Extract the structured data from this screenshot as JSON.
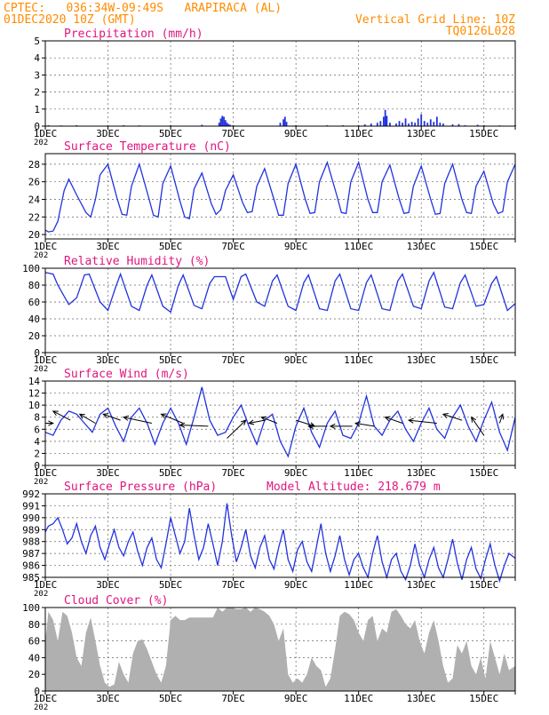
{
  "header": {
    "line1_left": "CPTEC:   036:34W-09:49S   ARAPIRACA (AL)",
    "line2_left": "01DEC2020 10Z (GMT)",
    "line1_right": "Vertical Grid Line: 10Z",
    "line2_right": "TQ0126L028"
  },
  "colors": {
    "header": "#ff8c00",
    "title": "#e0157f",
    "series": "#2233dd",
    "arrow": "#000000",
    "cloud": "#b0b0b0",
    "grid": "#666666"
  },
  "x_axis": {
    "tick_labels": [
      "1DEC",
      "3DEC",
      "5DEC",
      "7DEC",
      "9DEC",
      "11DEC",
      "13DEC",
      "15DEC"
    ],
    "tick_days": [
      1,
      3,
      5,
      7,
      9,
      11,
      13,
      15
    ],
    "lower_label": "202",
    "range_days": [
      1,
      16
    ]
  },
  "chart_data": [
    {
      "name": "precip",
      "type": "bar",
      "title": "Precipitation (mm/h)",
      "yticks": [
        "0",
        "1",
        "2",
        "3",
        "4",
        "5"
      ],
      "ylim": [
        0,
        5
      ],
      "x": [
        1.1,
        1.5,
        2.0,
        3.0,
        3.5,
        4.0,
        5.0,
        6.0,
        6.55,
        6.6,
        6.65,
        6.7,
        6.75,
        6.8,
        6.85,
        6.9,
        7.0,
        8.5,
        8.6,
        8.65,
        8.7,
        9.0,
        10.0,
        10.5,
        11.0,
        11.2,
        11.4,
        11.6,
        11.7,
        11.8,
        11.85,
        11.9,
        12.0,
        12.2,
        12.3,
        12.4,
        12.5,
        12.6,
        12.7,
        12.8,
        12.9,
        13.0,
        13.1,
        13.2,
        13.3,
        13.4,
        13.5,
        13.6,
        13.7,
        14.0,
        14.2,
        14.4,
        14.8,
        15.0,
        15.5,
        16.0
      ],
      "values": [
        0.05,
        0.04,
        0.05,
        0.04,
        0.05,
        0.04,
        0.05,
        0.08,
        0.2,
        0.45,
        0.6,
        0.55,
        0.35,
        0.2,
        0.12,
        0.08,
        0.05,
        0.2,
        0.4,
        0.55,
        0.25,
        0.05,
        0.05,
        0.05,
        0.05,
        0.1,
        0.15,
        0.2,
        0.3,
        0.55,
        0.95,
        0.6,
        0.2,
        0.15,
        0.3,
        0.2,
        0.45,
        0.15,
        0.25,
        0.2,
        0.45,
        0.7,
        0.3,
        0.2,
        0.4,
        0.25,
        0.55,
        0.2,
        0.15,
        0.1,
        0.12,
        0.05,
        0.08,
        0.05,
        0.04,
        0.05
      ]
    },
    {
      "name": "temp",
      "type": "line",
      "title": "Surface Temperature (nC)",
      "yticks": [
        "20",
        "22",
        "24",
        "26",
        "28"
      ],
      "ylim": [
        19.5,
        29.2
      ],
      "x": [
        1.0,
        1.1,
        1.25,
        1.4,
        1.6,
        1.75,
        2.0,
        2.3,
        2.45,
        2.6,
        2.75,
        3.0,
        3.3,
        3.45,
        3.6,
        3.75,
        4.0,
        4.3,
        4.45,
        4.6,
        4.75,
        5.0,
        5.3,
        5.45,
        5.6,
        5.75,
        6.0,
        6.3,
        6.45,
        6.6,
        6.75,
        7.0,
        7.3,
        7.45,
        7.6,
        7.75,
        8.0,
        8.3,
        8.45,
        8.6,
        8.75,
        9.0,
        9.3,
        9.45,
        9.6,
        9.75,
        10.0,
        10.3,
        10.45,
        10.6,
        10.75,
        11.0,
        11.3,
        11.45,
        11.6,
        11.75,
        12.0,
        12.3,
        12.45,
        12.6,
        12.75,
        13.0,
        13.3,
        13.45,
        13.6,
        13.75,
        14.0,
        14.3,
        14.45,
        14.6,
        14.75,
        15.0,
        15.3,
        15.45,
        15.6,
        15.75,
        16.0
      ],
      "values": [
        20.5,
        20.3,
        20.4,
        21.5,
        25.0,
        26.3,
        24.5,
        22.5,
        22.0,
        24.0,
        26.8,
        28.0,
        24.0,
        22.3,
        22.2,
        25.5,
        28.0,
        24.2,
        22.2,
        22.0,
        25.8,
        27.8,
        23.8,
        22.0,
        21.8,
        25.2,
        27.0,
        23.5,
        22.3,
        22.8,
        25.0,
        26.8,
        23.6,
        22.5,
        22.6,
        25.5,
        27.5,
        24.0,
        22.2,
        22.2,
        25.8,
        28.0,
        24.0,
        22.4,
        22.5,
        26.0,
        28.2,
        24.5,
        22.5,
        22.4,
        26.0,
        28.2,
        24.0,
        22.5,
        22.5,
        26.0,
        27.9,
        24.0,
        22.4,
        22.5,
        25.5,
        27.8,
        24.0,
        22.3,
        22.4,
        25.8,
        28.0,
        24.0,
        22.5,
        22.4,
        25.5,
        27.2,
        23.5,
        22.4,
        22.6,
        26.0,
        28.0
      ]
    },
    {
      "name": "rh",
      "type": "line",
      "title": "Relative Humidity (%)",
      "yticks": [
        "0",
        "20",
        "40",
        "60",
        "80",
        "100"
      ],
      "ylim": [
        0,
        100
      ],
      "x": [
        1.0,
        1.25,
        1.4,
        1.75,
        2.0,
        2.25,
        2.4,
        2.75,
        3.0,
        3.25,
        3.4,
        3.75,
        4.0,
        4.25,
        4.4,
        4.75,
        5.0,
        5.25,
        5.4,
        5.75,
        6.0,
        6.25,
        6.4,
        6.75,
        7.0,
        7.25,
        7.4,
        7.75,
        8.0,
        8.25,
        8.4,
        8.75,
        9.0,
        9.25,
        9.4,
        9.75,
        10.0,
        10.25,
        10.4,
        10.75,
        11.0,
        11.25,
        11.4,
        11.75,
        12.0,
        12.25,
        12.4,
        12.75,
        13.0,
        13.25,
        13.4,
        13.75,
        14.0,
        14.25,
        14.4,
        14.75,
        15.0,
        15.25,
        15.4,
        15.75,
        16.0
      ],
      "values": [
        95,
        93,
        80,
        57,
        65,
        92,
        93,
        60,
        50,
        78,
        93,
        55,
        50,
        80,
        92,
        55,
        48,
        80,
        92,
        56,
        52,
        82,
        90,
        90,
        63,
        90,
        93,
        60,
        55,
        85,
        92,
        55,
        50,
        83,
        92,
        52,
        50,
        85,
        93,
        52,
        50,
        83,
        92,
        52,
        50,
        85,
        93,
        55,
        52,
        85,
        95,
        54,
        52,
        83,
        92,
        55,
        57,
        82,
        90,
        50,
        58
      ]
    },
    {
      "name": "wind",
      "type": "line",
      "title": "Surface Wind (m/s)",
      "yticks": [
        "0",
        "2",
        "4",
        "6",
        "8",
        "10",
        "12",
        "14"
      ],
      "ylim": [
        0,
        14
      ],
      "x": [
        1.0,
        1.25,
        1.5,
        1.75,
        2.0,
        2.25,
        2.5,
        2.75,
        3.0,
        3.25,
        3.5,
        3.75,
        4.0,
        4.25,
        4.5,
        4.75,
        5.0,
        5.25,
        5.5,
        5.75,
        6.0,
        6.25,
        6.5,
        6.75,
        7.0,
        7.25,
        7.5,
        7.75,
        8.0,
        8.25,
        8.5,
        8.75,
        9.0,
        9.25,
        9.5,
        9.75,
        10.0,
        10.25,
        10.5,
        10.75,
        11.0,
        11.25,
        11.5,
        11.75,
        12.0,
        12.25,
        12.5,
        12.75,
        13.0,
        13.25,
        13.5,
        13.75,
        14.0,
        14.25,
        14.5,
        14.75,
        15.0,
        15.25,
        15.5,
        15.75,
        16.0
      ],
      "values": [
        5.5,
        5.0,
        7.5,
        9.0,
        8.5,
        7.0,
        5.5,
        8.5,
        9.5,
        6.5,
        4.0,
        8.0,
        9.5,
        7.0,
        3.5,
        7.0,
        9.5,
        7.0,
        3.5,
        8.0,
        13.0,
        7.5,
        5.0,
        5.5,
        8.0,
        10.0,
        6.5,
        3.5,
        7.5,
        8.5,
        4.0,
        1.5,
        6.5,
        9.5,
        5.5,
        3.0,
        7.0,
        9.0,
        5.0,
        4.5,
        7.0,
        11.5,
        6.5,
        5.0,
        7.5,
        9.0,
        6.0,
        4.0,
        7.0,
        9.5,
        6.0,
        4.5,
        8.0,
        10.0,
        6.5,
        4.0,
        7.5,
        10.5,
        5.5,
        2.5,
        8.0
      ],
      "arrows": [
        {
          "x": 1.0,
          "y": 7.0,
          "dx": 0.25,
          "dy": 0.0
        },
        {
          "x": 1.8,
          "y": 7.5,
          "dx": -0.55,
          "dy": 1.5
        },
        {
          "x": 2.6,
          "y": 7.0,
          "dx": -0.5,
          "dy": 1.5
        },
        {
          "x": 3.4,
          "y": 7.5,
          "dx": -0.55,
          "dy": 1.0
        },
        {
          "x": 4.4,
          "y": 7.0,
          "dx": -0.9,
          "dy": 1.0
        },
        {
          "x": 5.4,
          "y": 7.0,
          "dx": -0.7,
          "dy": 1.5
        },
        {
          "x": 6.2,
          "y": 6.5,
          "dx": -0.9,
          "dy": 0.2
        },
        {
          "x": 6.8,
          "y": 4.5,
          "dx": 0.6,
          "dy": 3.0
        },
        {
          "x": 8.0,
          "y": 7.5,
          "dx": -0.5,
          "dy": -0.5
        },
        {
          "x": 8.4,
          "y": 7.0,
          "dx": -0.5,
          "dy": 1.0
        },
        {
          "x": 9.0,
          "y": 7.5,
          "dx": 0.6,
          "dy": -1.0
        },
        {
          "x": 10.0,
          "y": 6.5,
          "dx": -0.6,
          "dy": 0.0
        },
        {
          "x": 10.8,
          "y": 6.5,
          "dx": -0.7,
          "dy": 0.0
        },
        {
          "x": 11.5,
          "y": 6.5,
          "dx": -0.6,
          "dy": 0.5
        },
        {
          "x": 12.4,
          "y": 7.0,
          "dx": -0.55,
          "dy": 1.0
        },
        {
          "x": 13.5,
          "y": 7.0,
          "dx": -0.9,
          "dy": 0.5
        },
        {
          "x": 14.3,
          "y": 7.5,
          "dx": -0.6,
          "dy": 1.0
        },
        {
          "x": 15.0,
          "y": 5.0,
          "dx": -0.4,
          "dy": 3.0
        },
        {
          "x": 15.5,
          "y": 7.0,
          "dx": 0.1,
          "dy": 1.5
        }
      ]
    },
    {
      "name": "pres",
      "type": "line",
      "title": "Surface Pressure (hPa)",
      "annotation": "Model Altitude: 218.679 m",
      "yticks": [
        "985",
        "986",
        "987",
        "988",
        "989",
        "990",
        "991",
        "992"
      ],
      "ylim": [
        985,
        992
      ],
      "x": [
        1.0,
        1.1,
        1.25,
        1.4,
        1.55,
        1.7,
        1.85,
        2.0,
        2.15,
        2.3,
        2.45,
        2.6,
        2.75,
        2.9,
        3.05,
        3.2,
        3.35,
        3.5,
        3.65,
        3.8,
        3.95,
        4.1,
        4.25,
        4.4,
        4.55,
        4.7,
        4.85,
        5.0,
        5.15,
        5.3,
        5.45,
        5.6,
        5.75,
        5.9,
        6.05,
        6.2,
        6.35,
        6.5,
        6.65,
        6.8,
        6.95,
        7.1,
        7.25,
        7.4,
        7.55,
        7.7,
        7.85,
        8.0,
        8.15,
        8.3,
        8.45,
        8.6,
        8.75,
        8.9,
        9.05,
        9.2,
        9.35,
        9.5,
        9.65,
        9.8,
        9.95,
        10.1,
        10.25,
        10.4,
        10.55,
        10.7,
        10.85,
        11.0,
        11.15,
        11.3,
        11.45,
        11.6,
        11.75,
        11.9,
        12.05,
        12.2,
        12.35,
        12.5,
        12.65,
        12.8,
        12.95,
        13.1,
        13.25,
        13.4,
        13.55,
        13.7,
        13.85,
        14.0,
        14.15,
        14.3,
        14.45,
        14.6,
        14.75,
        14.9,
        15.05,
        15.2,
        15.35,
        15.5,
        15.65,
        15.8,
        16.0
      ],
      "values": [
        988.8,
        989.3,
        989.5,
        990.0,
        989.0,
        987.8,
        988.3,
        989.5,
        988.0,
        987.0,
        988.5,
        989.3,
        987.5,
        986.5,
        987.8,
        989.0,
        987.5,
        986.8,
        988.0,
        988.8,
        987.2,
        986.0,
        987.5,
        988.3,
        986.5,
        985.8,
        987.8,
        990.0,
        988.5,
        987.0,
        988.0,
        990.8,
        988.5,
        986.5,
        987.5,
        989.5,
        987.8,
        986.0,
        988.0,
        991.2,
        988.5,
        986.3,
        987.5,
        989.0,
        986.8,
        985.8,
        987.5,
        988.5,
        986.5,
        985.7,
        987.5,
        989.0,
        986.5,
        985.5,
        987.3,
        988.0,
        986.3,
        985.5,
        987.5,
        989.5,
        987.0,
        985.5,
        986.8,
        988.5,
        986.5,
        985.2,
        986.5,
        987.0,
        985.8,
        985.0,
        987.0,
        988.5,
        986.3,
        985.0,
        986.5,
        987.0,
        985.5,
        984.8,
        986.0,
        987.8,
        986.0,
        985.0,
        986.5,
        987.5,
        985.8,
        985.0,
        986.5,
        988.2,
        986.2,
        984.8,
        986.5,
        987.5,
        985.7,
        984.9,
        986.5,
        987.8,
        986.0,
        984.7,
        986.0,
        987.0,
        986.6
      ]
    },
    {
      "name": "cloud",
      "type": "area",
      "title": "Cloud Cover (%)",
      "yticks": [
        "0",
        "20",
        "40",
        "60",
        "80",
        "100"
      ],
      "ylim": [
        0,
        100
      ],
      "x": [
        1.0,
        1.1,
        1.25,
        1.4,
        1.55,
        1.7,
        1.85,
        2.0,
        2.15,
        2.3,
        2.45,
        2.6,
        2.75,
        2.9,
        3.05,
        3.2,
        3.35,
        3.5,
        3.65,
        3.8,
        3.95,
        4.1,
        4.25,
        4.4,
        4.55,
        4.7,
        4.85,
        5.0,
        5.15,
        5.3,
        5.45,
        5.6,
        5.75,
        5.9,
        6.05,
        6.2,
        6.35,
        6.5,
        6.65,
        6.8,
        6.95,
        7.1,
        7.25,
        7.4,
        7.55,
        7.7,
        7.85,
        8.0,
        8.15,
        8.3,
        8.45,
        8.6,
        8.75,
        8.9,
        9.05,
        9.2,
        9.35,
        9.5,
        9.65,
        9.8,
        9.95,
        10.1,
        10.25,
        10.4,
        10.55,
        10.7,
        10.85,
        11.0,
        11.15,
        11.3,
        11.45,
        11.6,
        11.75,
        11.9,
        12.05,
        12.2,
        12.35,
        12.5,
        12.65,
        12.8,
        12.95,
        13.1,
        13.25,
        13.4,
        13.55,
        13.7,
        13.85,
        14.0,
        14.15,
        14.3,
        14.45,
        14.6,
        14.75,
        14.9,
        15.05,
        15.2,
        15.35,
        15.5,
        15.65,
        15.8,
        16.0
      ],
      "values": [
        60,
        95,
        85,
        60,
        95,
        90,
        70,
        40,
        30,
        70,
        88,
        60,
        30,
        10,
        5,
        8,
        35,
        20,
        10,
        45,
        60,
        62,
        50,
        35,
        20,
        10,
        30,
        85,
        90,
        85,
        85,
        88,
        88,
        88,
        88,
        88,
        88,
        100,
        95,
        100,
        100,
        98,
        98,
        100,
        95,
        100,
        98,
        95,
        90,
        80,
        60,
        75,
        20,
        10,
        15,
        10,
        20,
        40,
        30,
        25,
        5,
        15,
        50,
        90,
        95,
        92,
        85,
        70,
        60,
        85,
        90,
        60,
        75,
        70,
        95,
        98,
        90,
        80,
        75,
        85,
        60,
        45,
        70,
        85,
        60,
        30,
        10,
        15,
        55,
        45,
        60,
        30,
        20,
        40,
        15,
        60,
        40,
        20,
        45,
        25,
        30
      ]
    }
  ]
}
